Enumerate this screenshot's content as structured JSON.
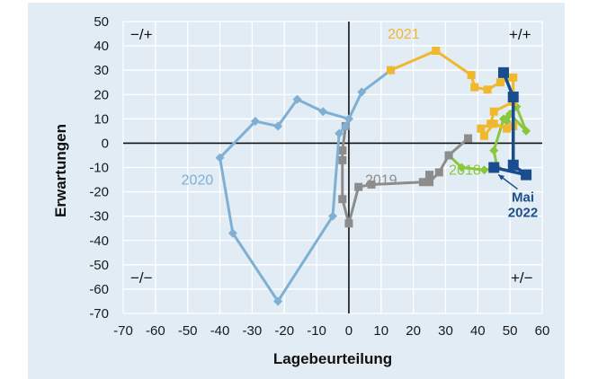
{
  "chart_data": {
    "type": "scatter",
    "title": "",
    "xlabel": "Lagebeurteilung",
    "ylabel": "Erwartungen",
    "xlim": [
      -70,
      60
    ],
    "ylim": [
      -70,
      50
    ],
    "x_ticks": [
      "-70",
      "-60",
      "-50",
      "-40",
      "-30",
      "-20",
      "-10",
      "0",
      "10",
      "20",
      "30",
      "40",
      "50",
      "60"
    ],
    "y_ticks": [
      "50",
      "40",
      "30",
      "20",
      "10",
      "0",
      "-10",
      "-20",
      "-30",
      "-40",
      "-50",
      "-60",
      "-70"
    ],
    "grid": true,
    "quadrant_labels": {
      "top_left": "−/+",
      "top_right": "+/+",
      "bottom_left": "−/−",
      "bottom_right": "+/−"
    },
    "series": [
      {
        "name": "2018",
        "color": "#8cc63f",
        "marker": "diamond",
        "points": [
          [
            52,
            15
          ],
          [
            49,
            9
          ],
          [
            50,
            12
          ],
          [
            55,
            5
          ],
          [
            52,
            15
          ],
          [
            48,
            10
          ],
          [
            45,
            -3
          ],
          [
            46,
            -10
          ],
          [
            42,
            -11
          ],
          [
            35,
            -10
          ],
          [
            31,
            -5
          ]
        ]
      },
      {
        "name": "2019",
        "color": "#8c8c8c",
        "marker": "square",
        "points": [
          [
            37,
            2
          ],
          [
            31,
            -5
          ],
          [
            28,
            -12
          ],
          [
            25,
            -16
          ],
          [
            25,
            -13
          ],
          [
            23,
            -16
          ],
          [
            7,
            -17
          ],
          [
            3,
            -18
          ],
          [
            0,
            -33
          ],
          [
            -2,
            -23
          ],
          [
            -2,
            -7
          ],
          [
            -2,
            -3
          ],
          [
            -1,
            7
          ]
        ]
      },
      {
        "name": "2020",
        "color": "#7fb0d4",
        "marker": "diamond",
        "points": [
          [
            0,
            10
          ],
          [
            -8,
            13
          ],
          [
            -16,
            18
          ],
          [
            -22,
            7
          ],
          [
            -29,
            9
          ],
          [
            -40,
            -6
          ],
          [
            -36,
            -37
          ],
          [
            -22,
            -65
          ],
          [
            -5,
            -30
          ],
          [
            -3,
            4
          ],
          [
            -1,
            7
          ],
          [
            0,
            10
          ],
          [
            4,
            21
          ],
          [
            13,
            30
          ]
        ]
      },
      {
        "name": "2021",
        "color": "#f0b82d",
        "marker": "square",
        "points": [
          [
            13,
            30
          ],
          [
            27,
            38
          ],
          [
            38,
            28
          ],
          [
            39,
            23
          ],
          [
            43,
            22
          ],
          [
            47,
            25
          ],
          [
            51,
            27
          ],
          [
            51,
            17
          ],
          [
            45,
            13
          ],
          [
            44,
            8
          ],
          [
            41,
            6
          ],
          [
            42,
            3
          ],
          [
            45,
            8
          ],
          [
            49,
            6
          ],
          [
            51,
            7
          ]
        ]
      },
      {
        "name": "2022",
        "color": "#1a4d8f",
        "marker": "square",
        "points": [
          [
            48,
            29
          ],
          [
            51,
            19
          ],
          [
            51,
            -9
          ],
          [
            55,
            -13
          ],
          [
            45,
            -10
          ]
        ]
      }
    ],
    "annotations": [
      {
        "text": "2021",
        "x": 17,
        "y": 43,
        "color": "#f0b82d"
      },
      {
        "text": "2020",
        "x": -47,
        "y": -17,
        "color": "#7fb0d4"
      },
      {
        "text": "2019",
        "x": 10,
        "y": -17,
        "color": "#8c8c8c"
      },
      {
        "text": "2018",
        "x": 36,
        "y": -13,
        "color": "#8cc63f"
      },
      {
        "text": "Mai 2022",
        "x": 54,
        "y": -24,
        "color": "#1a4d8f",
        "arrow_to": [
          45,
          -10
        ]
      }
    ]
  }
}
